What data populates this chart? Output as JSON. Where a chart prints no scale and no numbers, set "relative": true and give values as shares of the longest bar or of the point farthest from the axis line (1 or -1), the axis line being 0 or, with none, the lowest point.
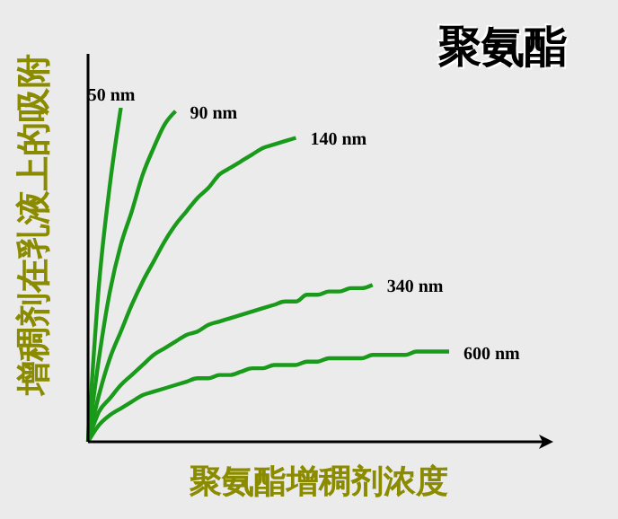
{
  "chart_data": {
    "type": "line",
    "title": "聚氨酯",
    "xlabel": "聚氨酯增稠剂浓度",
    "ylabel": "增稠剂在乳液上的吸附",
    "relative": true,
    "legend": false,
    "grid": false,
    "marker": "none",
    "line_style": "solid",
    "categories": [
      null,
      null,
      null,
      null,
      null,
      null,
      null,
      null,
      null,
      null,
      null,
      null,
      null,
      null,
      null,
      null,
      null,
      null,
      null,
      null,
      null,
      null,
      null,
      null,
      null,
      null,
      null,
      null,
      null,
      null,
      null,
      null,
      null,
      null
    ],
    "series": [
      {
        "name": "50 nm",
        "color": "#1a9a1a",
        "values": [
          0,
          0.47,
          0.77,
          1.0,
          null,
          null,
          null,
          null,
          null,
          null,
          null,
          null,
          null,
          null,
          null,
          null,
          null,
          null,
          null,
          null,
          null,
          null,
          null,
          null,
          null,
          null,
          null,
          null,
          null,
          null,
          null,
          null,
          null,
          null
        ]
      },
      {
        "name": "90 nm",
        "color": "#1a9a1a",
        "values": [
          0,
          0.25,
          0.45,
          0.59,
          0.69,
          0.8,
          0.88,
          0.95,
          0.99,
          null,
          null,
          null,
          null,
          null,
          null,
          null,
          null,
          null,
          null,
          null,
          null,
          null,
          null,
          null,
          null,
          null,
          null,
          null,
          null,
          null,
          null,
          null,
          null,
          null
        ]
      },
      {
        "name": "140 nm",
        "color": "#1a9a1a",
        "values": [
          0,
          0.14,
          0.25,
          0.33,
          0.41,
          0.48,
          0.54,
          0.6,
          0.65,
          0.69,
          0.73,
          0.76,
          0.8,
          0.82,
          0.84,
          0.86,
          0.88,
          0.89,
          0.9,
          0.91,
          null,
          null,
          null,
          null,
          null,
          null,
          null,
          null,
          null,
          null,
          null,
          null,
          null,
          null
        ]
      },
      {
        "name": "340 nm",
        "color": "#1a9a1a",
        "values": [
          0,
          0.09,
          0.13,
          0.17,
          0.2,
          0.23,
          0.26,
          0.28,
          0.3,
          0.32,
          0.33,
          0.35,
          0.36,
          0.37,
          0.38,
          0.39,
          0.4,
          0.41,
          0.42,
          0.42,
          0.44,
          0.44,
          0.45,
          0.45,
          0.46,
          0.46,
          0.47,
          null,
          null,
          null,
          null,
          null,
          null,
          null
        ]
      },
      {
        "name": "600 nm",
        "color": "#1a9a1a",
        "values": [
          0,
          0.05,
          0.08,
          0.1,
          0.12,
          0.14,
          0.15,
          0.16,
          0.17,
          0.18,
          0.19,
          0.19,
          0.2,
          0.2,
          0.21,
          0.22,
          0.22,
          0.23,
          0.23,
          0.23,
          0.24,
          0.24,
          0.25,
          0.25,
          0.25,
          0.25,
          0.26,
          0.26,
          0.26,
          0.26,
          0.27,
          0.27,
          0.27,
          0.27
        ]
      }
    ]
  }
}
